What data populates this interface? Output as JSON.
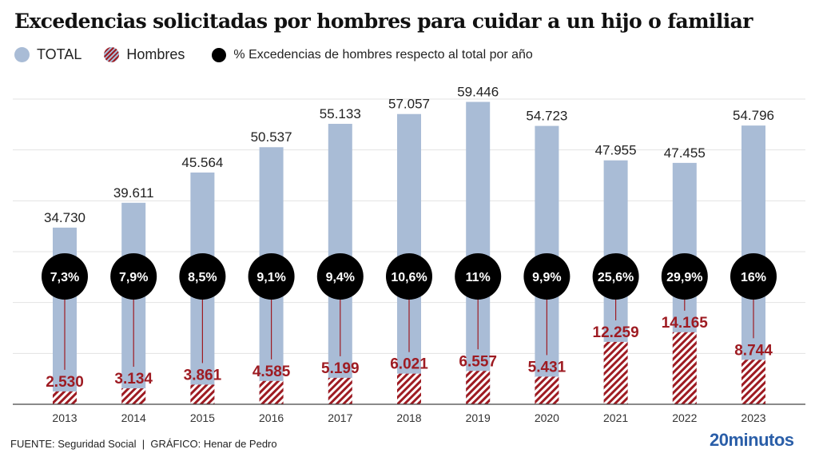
{
  "title": "Excedencias solicitadas por hombres para cuidar a un hijo o familiar",
  "legend": {
    "total": "TOTAL",
    "hombres": "Hombres",
    "pct": "% Excedencias de hombres respecto al total por año"
  },
  "footer": {
    "source": "FUENTE: Seguridad Social",
    "sep": "|",
    "credit": "GRÁFICO: Henar de Pedro"
  },
  "logo": "20minutos",
  "colors": {
    "total": "#a9bcd6",
    "hombres": "#9e1b22",
    "circle": "#000000",
    "logo": "#2a5ea8"
  },
  "chart_data": {
    "type": "bar",
    "categories": [
      "2013",
      "2014",
      "2015",
      "2016",
      "2017",
      "2018",
      "2019",
      "2020",
      "2021",
      "2022",
      "2023"
    ],
    "series": [
      {
        "name": "TOTAL",
        "values": [
          34730,
          39611,
          45564,
          50537,
          55133,
          57057,
          59446,
          54723,
          47955,
          47455,
          54796
        ],
        "labels": [
          "34.730",
          "39.611",
          "45.564",
          "50.537",
          "55.133",
          "57.057",
          "59.446",
          "54.723",
          "47.955",
          "47.455",
          "54.796"
        ]
      },
      {
        "name": "Hombres",
        "values": [
          2530,
          3134,
          3861,
          4585,
          5199,
          6021,
          6557,
          5431,
          12259,
          14165,
          8744
        ],
        "labels": [
          "2.530",
          "3.134",
          "3.861",
          "4.585",
          "5.199",
          "6.021",
          "6.557",
          "5.431",
          "12.259",
          "14.165",
          "8.744"
        ]
      },
      {
        "name": "% Excedencias de hombres respecto al total por año",
        "values": [
          7.3,
          7.9,
          8.5,
          9.1,
          9.4,
          10.6,
          11,
          9.9,
          25.6,
          29.9,
          16
        ],
        "labels": [
          "7,3%",
          "7,9%",
          "8,5%",
          "9,1%",
          "9,4%",
          "10,6%",
          "11%",
          "9,9%",
          "25,6%",
          "29,9%",
          "16%"
        ]
      }
    ],
    "ylim": [
      0,
      60000
    ],
    "grid": true,
    "legend_position": "top-left"
  }
}
